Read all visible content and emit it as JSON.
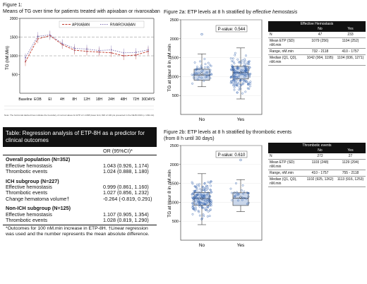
{
  "figure1": {
    "caption_line1": "Figure 1:",
    "caption_line2": "Means of TG over time for patients treated with apixaban or rivaroxaban",
    "ylabel": "TG (nM.Min)",
    "legend": [
      {
        "name": "APIXABAN",
        "color": "#c0392b"
      },
      {
        "name": "RIVAROXABAN",
        "color": "#7d6fb0"
      }
    ],
    "timepoints": [
      "Baseline",
      "EOB",
      "EI",
      "4H",
      "8H",
      "12H",
      "18H",
      "24H",
      "48H",
      "72H",
      "30DAYS"
    ],
    "yticks": [
      "500",
      "1000",
      "1500",
      "2000"
    ],
    "note": "Note: The horizontal dashed lines indicate the boundary of normal values for ETP of 1.1368 (lower limit, 820 of 100 pts presented in the NEJM 2019 p. 1332-41)."
  },
  "figure2a": {
    "caption_prefix": "Figure 2a: ETP levels at 8 h stratified by ",
    "caption_em": "effective hemostasis",
    "pvalue": "P-value: 0.544",
    "ylabel": "TG at Hour 8 in nM.min",
    "yticks": [
      "500",
      "1000",
      "1500",
      "2000",
      "2500"
    ],
    "groups": [
      "No",
      "Yes"
    ],
    "table": {
      "title": "Effective Hemostasis",
      "cols": [
        "No",
        "Yes"
      ],
      "rows": [
        {
          "label": "N",
          "a": "47",
          "b": "233"
        },
        {
          "label": "Mean ETP (SD) nM.min",
          "a": "1079 (256)",
          "b": "1104 (252)"
        },
        {
          "label": "Range, nM.min",
          "a": "732 - 2118",
          "b": "410 - 1757"
        },
        {
          "label": "Median (Q1, Q3), nM.min",
          "a": "1042 (904, 1195)",
          "b": "1104 (936, 1271)"
        }
      ]
    }
  },
  "figure2b": {
    "caption_line1": "Figure 2b: ETP levels at 8 h stratified by thrombotic events",
    "caption_line2": "(from 8 h until 30 days)",
    "pvalue": "P-value: 0.610",
    "ylabel": "TG at Hour 8 in nM.min",
    "yticks": [
      "500",
      "1000",
      "1500",
      "2000",
      "2500"
    ],
    "groups": [
      "No",
      "Yes"
    ],
    "table": {
      "title": "Thrombotic events",
      "cols": [
        "No",
        "Yes"
      ],
      "rows": [
        {
          "label": "N",
          "a": "272",
          "b": "27"
        },
        {
          "label": "Mean ETP (SD) nM.min",
          "a": "1103 (248)",
          "b": "1129 (294)"
        },
        {
          "label": "Range, nM.min",
          "a": "410 - 1757",
          "b": "755 - 2118"
        },
        {
          "label": "Median (Q1, Q3), nM.min",
          "a": "1102 (925, 1262)",
          "b": "1113 (916, 1253)"
        }
      ]
    }
  },
  "regression": {
    "title": "Table: Regression analysis of ETP-8H as a predictor for clinical outcomes",
    "col_header": "OR (95%CI)*",
    "sections": [
      {
        "heading": "Overall population (N=352)",
        "rows": [
          {
            "label": "Effective hemostasis",
            "value": "1.043 (0.926, 1.174)"
          },
          {
            "label": "Thrombotic events",
            "value": "1.024 (0.888, 1.180)"
          }
        ]
      },
      {
        "heading": "ICH subgroup (N=227)",
        "rows": [
          {
            "label": "Effective hemostasis",
            "value": "0.999 (0.861, 1.160)"
          },
          {
            "label": "Thrombotic events",
            "value": "1.027 (0.856, 1.232)"
          },
          {
            "label": "Change hematoma volume†",
            "value": "-0.264 (-0.819, 0.291)"
          }
        ]
      },
      {
        "heading": "Non-ICH subgroup (N=125)",
        "rows": [
          {
            "label": "Effective hemostasis",
            "value": "1.107 (0.905, 1.354)"
          },
          {
            "label": "Thrombotic events",
            "value": "1.028 (0.819, 1.290)"
          }
        ]
      }
    ],
    "footnote": "*Outcomes for 100 nM.min increase in ETP-8H. †Linear regression was used and the number represents the mean absolute difference."
  },
  "chart_data": [
    {
      "type": "line",
      "title": "Means of TG over time for patients treated with apixaban or rivaroxaban",
      "ylabel": "TG (nM.Min)",
      "categories": [
        "Baseline",
        "EOB",
        "EI",
        "4H",
        "8H",
        "12H",
        "18H",
        "24H",
        "48H",
        "72H",
        "30DAYS"
      ],
      "ylim": [
        0,
        2000
      ],
      "reference_lines": [
        1500,
        1000
      ],
      "series": [
        {
          "name": "APIXABAN",
          "values": [
            840,
            1450,
            1540,
            1300,
            1150,
            1120,
            1100,
            1080,
            1000,
            1020,
            1120
          ]
        },
        {
          "name": "RIVAROXABAN",
          "values": [
            950,
            1520,
            1560,
            1330,
            1200,
            1180,
            1140,
            1160,
            1080,
            1090,
            1160
          ]
        }
      ]
    },
    {
      "type": "scatter",
      "title": "ETP levels at 8 h stratified by effective hemostasis",
      "ylabel": "TG at Hour 8 in nM.min",
      "categories": [
        "No",
        "Yes"
      ],
      "ylim": [
        0,
        2500
      ],
      "boxes": [
        {
          "group": "No",
          "min": 732,
          "q1": 904,
          "median": 1042,
          "q3": 1195,
          "max": 1600,
          "outliers": [
            2118
          ],
          "mean": 1079
        },
        {
          "group": "Yes",
          "min": 410,
          "q1": 936,
          "median": 1104,
          "q3": 1271,
          "max": 1757,
          "mean": 1104
        }
      ]
    },
    {
      "type": "scatter",
      "title": "ETP levels at 8 h stratified by thrombotic events",
      "ylabel": "TG at Hour 8 in nM.min",
      "categories": [
        "No",
        "Yes"
      ],
      "ylim": [
        0,
        2500
      ],
      "boxes": [
        {
          "group": "No",
          "min": 410,
          "q1": 925,
          "median": 1102,
          "q3": 1262,
          "max": 1757,
          "mean": 1103
        },
        {
          "group": "Yes",
          "min": 755,
          "q1": 916,
          "median": 1113,
          "q3": 1253,
          "max": 1600,
          "outliers": [
            2118
          ],
          "mean": 1129
        }
      ]
    }
  ]
}
